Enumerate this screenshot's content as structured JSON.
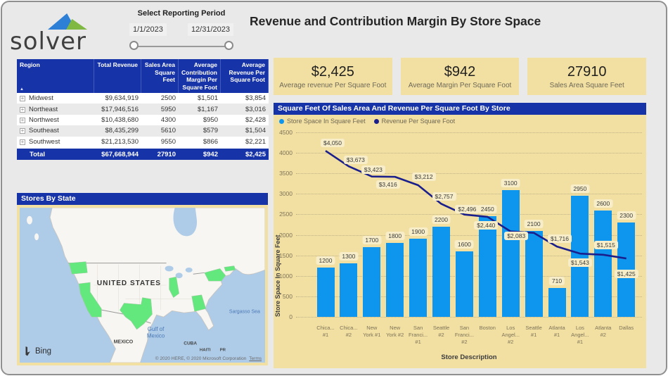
{
  "logo": {
    "text": "solver"
  },
  "period": {
    "label": "Select Reporting Period",
    "start": "1/1/2023",
    "end": "12/31/2023"
  },
  "page_title": "Revenue and Contribution Margin By Store Space",
  "table": {
    "columns": [
      "Region",
      "Total Revenue",
      "Sales Area Square Feet",
      "Average Contribution Margin Per Square Foot",
      "Average Revenue Per Square Foot"
    ],
    "rows": [
      [
        "Midwest",
        "$9,634,919",
        "2500",
        "$1,501",
        "$3,854"
      ],
      [
        "Northeast",
        "$17,946,516",
        "5950",
        "$1,167",
        "$3,016"
      ],
      [
        "Northwest",
        "$10,438,680",
        "4300",
        "$950",
        "$2,428"
      ],
      [
        "Southeast",
        "$8,435,299",
        "5610",
        "$579",
        "$1,504"
      ],
      [
        "Southwest",
        "$21,213,530",
        "9550",
        "$866",
        "$2,221"
      ]
    ],
    "total": [
      "Total",
      "$67,668,944",
      "27910",
      "$942",
      "$2,425"
    ]
  },
  "kpis": [
    {
      "value": "$2,425",
      "label": "Average revenue Per Square Foot"
    },
    {
      "value": "$942",
      "label": "Average Margin Per Square Foot"
    },
    {
      "value": "27910",
      "label": "Sales Area Square Feet"
    }
  ],
  "map": {
    "title": "Stores By State",
    "highlighted_states": [
      "Washington",
      "California",
      "Texas",
      "Illinois",
      "Georgia",
      "New York",
      "Massachusetts"
    ],
    "labels": {
      "country": "UNITED STATES",
      "mexico": "MEXICO",
      "cuba": "CUBA",
      "haiti": "HAITI",
      "pr": "PR",
      "gulf_line1": "Gulf of",
      "gulf_line2": "Mexico",
      "sargasso": "Sargasso Sea"
    },
    "bing": "Bing",
    "attribution": "© 2020 HERE, © 2020 Microsoft Corporation",
    "terms": "Terms"
  },
  "chart_data": {
    "type": "combo bar+line",
    "title": "Square Feet Of Sales Area And Revenue Per Square Foot By Store",
    "xlabel": "Store Description",
    "ylabel": "Store Space In Square Feet",
    "ylim": [
      0,
      4500
    ],
    "yticks": [
      0,
      500,
      1000,
      1500,
      2000,
      2500,
      3000,
      3500,
      4000,
      4500
    ],
    "grid": "dotted horizontal",
    "legend_position": "top-left",
    "categories": [
      [
        "Chica...",
        "#1"
      ],
      [
        "Chica...",
        "#2"
      ],
      [
        "New",
        "York #1"
      ],
      [
        "New",
        "York #2"
      ],
      [
        "San",
        "Franci...",
        "#1"
      ],
      [
        "Seattle",
        "#2"
      ],
      [
        "San",
        "Franci...",
        "#2"
      ],
      [
        "Boston"
      ],
      [
        "Los",
        "Angel...",
        "#2"
      ],
      [
        "Seattle",
        "#1"
      ],
      [
        "Atlanta",
        "#1"
      ],
      [
        "Los",
        "Angel...",
        "#1"
      ],
      [
        "Atlanta",
        "#2"
      ],
      [
        "Dallas"
      ]
    ],
    "series": [
      {
        "name": "Store Space In Square Feet",
        "type": "bar",
        "color": "#0e96ee",
        "values": [
          1200,
          1300,
          1700,
          1800,
          1900,
          2200,
          1600,
          2450,
          3100,
          2100,
          710,
          2950,
          2600,
          2300
        ],
        "labels": [
          "1200",
          "1300",
          "1700",
          "1800",
          "1900",
          "2200",
          "1600",
          "2450",
          "3100",
          "2100",
          "710",
          "2950",
          "2600",
          "2300"
        ]
      },
      {
        "name": "Revenue Per Square Foot",
        "type": "line",
        "color": "#1a1f8c",
        "values": [
          4050,
          3673,
          3423,
          3416,
          3212,
          2757,
          2496,
          2440,
          2083,
          2050,
          1716,
          1543,
          1515,
          1425
        ],
        "labels": [
          "$4,050",
          "$3,673",
          "$3,423",
          "$3,416",
          "$3,212",
          "$2,757",
          "$2,496",
          "$2,440",
          "$2,083",
          "",
          "$1,716",
          "$1,543",
          "$1,515",
          "$1,425"
        ]
      }
    ]
  },
  "colors": {
    "header_blue": "#1733a8",
    "bar_blue": "#0e96ee",
    "line_navy": "#1a1f8c",
    "panel_khaki": "#f2dfa2",
    "label_pill": "#f7eec9",
    "map_sea": "#aecbe8",
    "map_land": "#f7f6f2",
    "map_state_green": "#63e87d",
    "page_bg": "#e9e9e9",
    "logo_blue": "#2e7fd6",
    "logo_green": "#7fb843"
  }
}
